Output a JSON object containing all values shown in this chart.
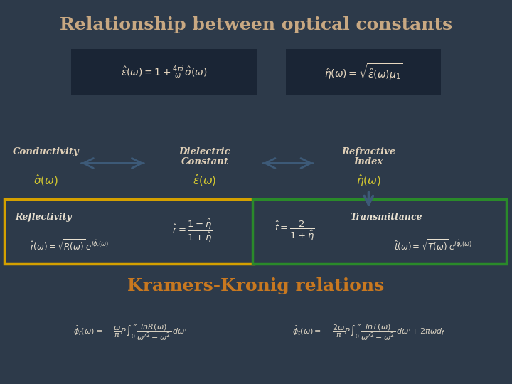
{
  "title": "Relationship between optical constants",
  "title_color": "#c8a882",
  "title_fontsize": 18,
  "bg_color": "#2d3a4a",
  "formula1": "$\\hat{\\epsilon}(\\omega) = 1 + \\frac{4\\pi i}{\\omega}\\hat{\\sigma}(\\omega)$",
  "formula2": "$\\hat{\\eta}(\\omega) = \\sqrt{\\hat{\\epsilon}(\\omega)\\mu_1}$",
  "formula_bg": "#1a2535",
  "formula_text_color": "#e8d8c0",
  "cond_label": "Conductivity",
  "cond_sym": "$\\hat{\\sigma}(\\omega)$",
  "diel_label1": "Dielectric",
  "diel_label2": "Constant",
  "diel_sym": "$\\hat{\\epsilon}(\\omega)$",
  "refr_label1": "Refractive",
  "refr_label2": "Index",
  "refr_sym": "$\\hat{\\eta}(\\omega)$",
  "arrow_color": "#3d5a78",
  "label_color": "#e0d0b8",
  "yellow_border": "#d4a000",
  "green_border": "#2a8a2a",
  "refl_title": "Reflectivity",
  "refl_eq1": "$\\hat{r}(\\omega) = \\sqrt{R(\\omega)}\\,e^{i\\hat{\\phi}_r(\\omega)}$",
  "refl_eq2": "$\\hat{r} = \\dfrac{1-\\hat{\\eta}}{1+\\hat{\\eta}}$",
  "trans_eq1": "$\\hat{t} = \\dfrac{2}{1+\\hat{\\eta}}$",
  "trans_title": "Transmittance",
  "trans_eq2": "$\\hat{t}(\\omega) = \\sqrt{T(\\omega)}\\,e^{i\\hat{\\phi}_t(\\omega)}$",
  "box_text_color": "#e8e0d0",
  "kk_title": "Kramers-Kronig relations",
  "kk_title_color": "#c87820",
  "kk_title_fontsize": 18,
  "kk_formula1": "$\\hat{\\phi}_r(\\omega) = -\\dfrac{\\omega}{\\pi}P\\int_0^{\\infty} \\dfrac{\\mathit{ln}R(\\omega)}{\\omega'^2 - \\omega^2}\\, d\\omega'$",
  "kk_formula2": "$\\hat{\\phi}_t(\\omega) = -\\dfrac{2\\omega}{\\pi}P\\int_0^{\\infty} \\dfrac{\\mathit{ln}T(\\omega)}{\\omega'^2 - \\omega^2}\\, d\\omega' + 2\\pi\\omega d_f$",
  "kk_color": "#d8d0c0",
  "sym_color": "#d4c830"
}
